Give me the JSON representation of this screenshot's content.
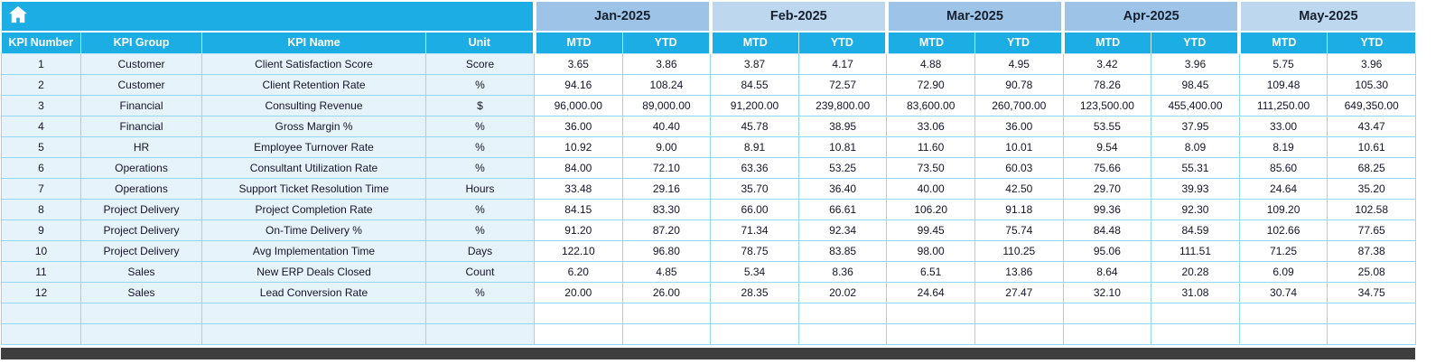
{
  "colors": {
    "header_cyan": "#1CADE4",
    "month_dark": "#9DC3E6",
    "month_light": "#BDD7EE",
    "left_column_bg": "#E7F3FA",
    "cell_border": "#8FDAF2",
    "bottom_bar": "#3E3E3E",
    "header_text": "#FFFFFF",
    "data_text": "#14142B"
  },
  "header": {
    "home_icon": "home-icon",
    "left_headers": [
      "KPI Number",
      "KPI Group",
      "KPI Name",
      "Unit"
    ],
    "months": [
      {
        "label": "Jan-2025",
        "shade": "dark"
      },
      {
        "label": "Feb-2025",
        "shade": "light"
      },
      {
        "label": "Mar-2025",
        "shade": "dark"
      },
      {
        "label": "Apr-2025",
        "shade": "dark"
      },
      {
        "label": "May-2025",
        "shade": "light"
      }
    ],
    "sub_headers": {
      "mtd": "MTD",
      "ytd": "YTD"
    }
  },
  "rows": [
    {
      "num": "1",
      "group": "Customer",
      "name": "Client Satisfaction Score",
      "unit": "Score",
      "values": [
        "3.65",
        "3.86",
        "3.87",
        "4.17",
        "4.88",
        "4.95",
        "3.42",
        "3.96",
        "5.75",
        "3.96"
      ]
    },
    {
      "num": "2",
      "group": "Customer",
      "name": "Client Retention Rate",
      "unit": "%",
      "values": [
        "94.16",
        "108.24",
        "84.55",
        "72.57",
        "72.90",
        "90.78",
        "78.26",
        "98.45",
        "109.48",
        "105.30"
      ]
    },
    {
      "num": "3",
      "group": "Financial",
      "name": "Consulting Revenue",
      "unit": "$",
      "values": [
        "96,000.00",
        "89,000.00",
        "91,200.00",
        "239,800.00",
        "83,600.00",
        "260,700.00",
        "123,500.00",
        "455,400.00",
        "111,250.00",
        "649,350.00"
      ]
    },
    {
      "num": "4",
      "group": "Financial",
      "name": "Gross Margin %",
      "unit": "%",
      "values": [
        "36.00",
        "40.40",
        "45.78",
        "38.95",
        "33.06",
        "36.00",
        "53.55",
        "37.95",
        "33.00",
        "43.47"
      ]
    },
    {
      "num": "5",
      "group": "HR",
      "name": "Employee Turnover Rate",
      "unit": "%",
      "values": [
        "10.92",
        "9.00",
        "8.91",
        "10.81",
        "11.60",
        "10.01",
        "9.54",
        "8.09",
        "8.19",
        "10.61"
      ]
    },
    {
      "num": "6",
      "group": "Operations",
      "name": "Consultant Utilization Rate",
      "unit": "%",
      "values": [
        "84.00",
        "72.10",
        "63.36",
        "53.25",
        "73.50",
        "60.03",
        "75.66",
        "55.31",
        "85.60",
        "68.25"
      ]
    },
    {
      "num": "7",
      "group": "Operations",
      "name": "Support Ticket Resolution Time",
      "unit": "Hours",
      "values": [
        "33.48",
        "29.16",
        "35.70",
        "36.40",
        "40.00",
        "42.50",
        "29.70",
        "39.93",
        "24.64",
        "35.20"
      ]
    },
    {
      "num": "8",
      "group": "Project Delivery",
      "name": "Project Completion Rate",
      "unit": "%",
      "values": [
        "84.15",
        "83.30",
        "66.00",
        "66.61",
        "106.20",
        "91.18",
        "99.36",
        "92.30",
        "109.20",
        "102.58"
      ]
    },
    {
      "num": "9",
      "group": "Project Delivery",
      "name": "On-Time Delivery %",
      "unit": "%",
      "values": [
        "91.20",
        "87.20",
        "71.34",
        "92.34",
        "99.45",
        "75.74",
        "84.48",
        "84.59",
        "102.66",
        "77.65"
      ]
    },
    {
      "num": "10",
      "group": "Project Delivery",
      "name": "Avg Implementation Time",
      "unit": "Days",
      "values": [
        "122.10",
        "96.80",
        "78.75",
        "83.85",
        "98.00",
        "110.25",
        "95.06",
        "111.51",
        "71.25",
        "87.38"
      ]
    },
    {
      "num": "11",
      "group": "Sales",
      "name": "New ERP Deals Closed",
      "unit": "Count",
      "values": [
        "6.20",
        "4.85",
        "5.34",
        "8.36",
        "6.51",
        "13.86",
        "8.64",
        "20.28",
        "6.09",
        "25.08"
      ]
    },
    {
      "num": "12",
      "group": "Sales",
      "name": "Lead Conversion Rate",
      "unit": "%",
      "values": [
        "20.00",
        "26.00",
        "28.35",
        "20.02",
        "24.64",
        "27.47",
        "32.10",
        "31.08",
        "30.74",
        "34.75"
      ]
    }
  ],
  "empty_row_count": 2
}
